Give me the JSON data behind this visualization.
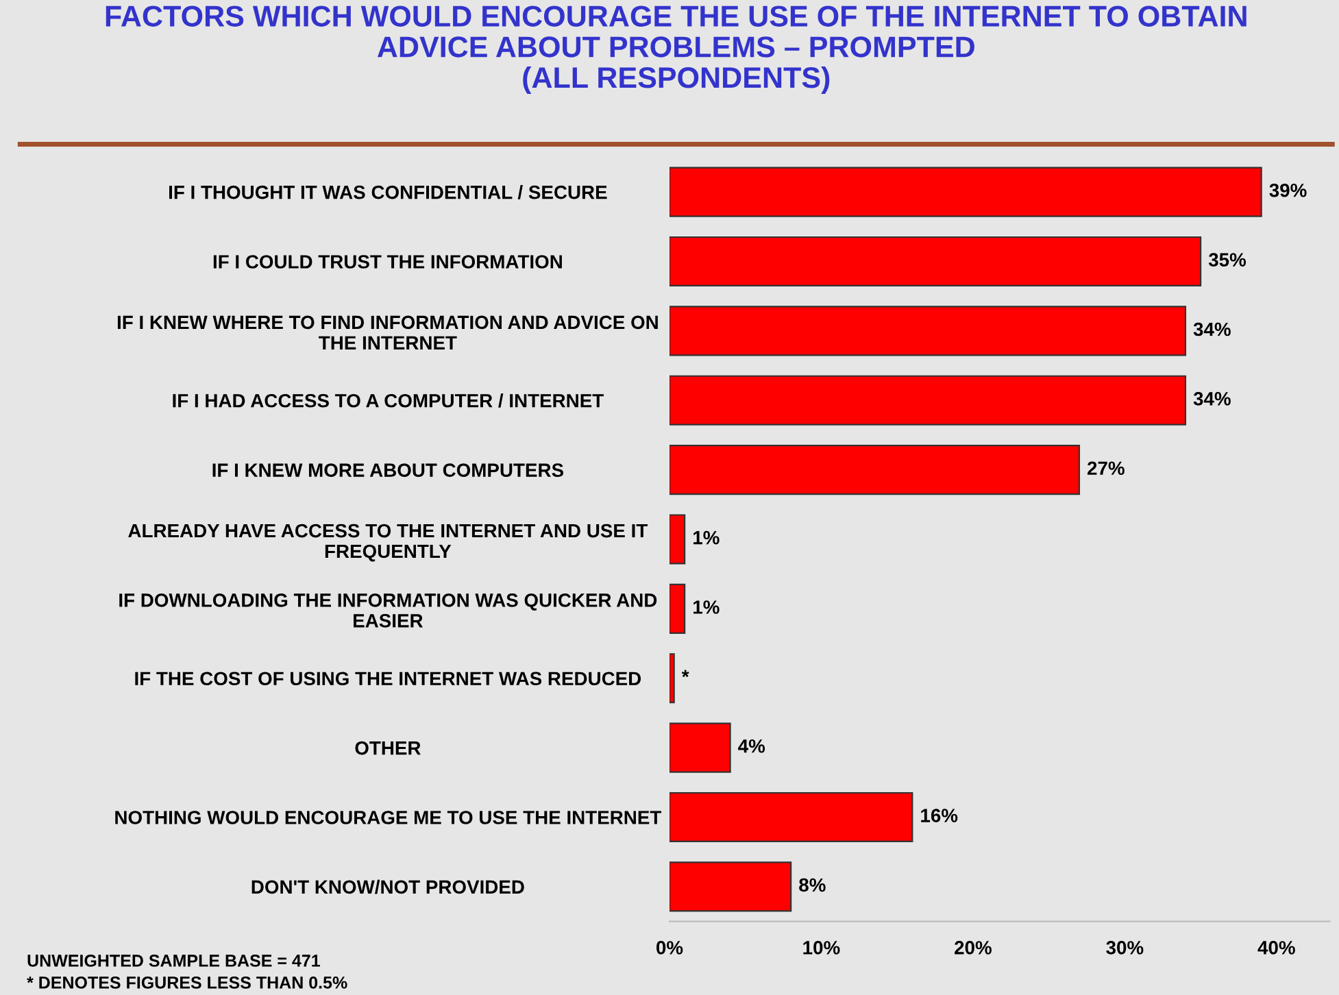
{
  "chart_data": {
    "type": "bar",
    "orientation": "horizontal",
    "title": "FACTORS WHICH WOULD ENCOURAGE THE USE OF THE INTERNET TO OBTAIN\nADVICE ABOUT PROBLEMS – PROMPTED\n(ALL RESPONDENTS)",
    "categories": [
      "IF I THOUGHT IT WAS CONFIDENTIAL / SECURE",
      "IF I COULD TRUST THE INFORMATION",
      "IF I KNEW WHERE TO FIND INFORMATION AND ADVICE ON\nTHE INTERNET",
      "IF I HAD ACCESS TO A COMPUTER / INTERNET",
      "IF I KNEW MORE ABOUT COMPUTERS",
      "ALREADY HAVE ACCESS TO THE INTERNET AND USE IT\nFREQUENTLY",
      "IF DOWNLOADING THE INFORMATION WAS QUICKER AND\nEASIER",
      "IF THE COST OF USING THE INTERNET WAS REDUCED",
      "OTHER",
      "NOTHING WOULD ENCOURAGE ME TO USE THE INTERNET",
      "DON'T KNOW/NOT PROVIDED"
    ],
    "values": [
      39,
      35,
      34,
      34,
      27,
      1,
      1,
      0.3,
      4,
      16,
      8
    ],
    "value_labels": [
      "39%",
      "35%",
      "34%",
      "34%",
      "27%",
      "1%",
      "1%",
      "*",
      "4%",
      "16%",
      "8%"
    ],
    "color": "#ff0000",
    "xlim": [
      0,
      43.5
    ],
    "xticks": [
      {
        "value": 0,
        "label": "0%"
      },
      {
        "value": 10,
        "label": "10%"
      },
      {
        "value": 20,
        "label": "20%"
      },
      {
        "value": 30,
        "label": "30%"
      },
      {
        "value": 40,
        "label": "40%"
      }
    ],
    "grid": false,
    "annotations": [
      "UNWEIGHTED SAMPLE BASE = 471",
      "* DENOTES FIGURES LESS THAN 0.5%"
    ]
  }
}
